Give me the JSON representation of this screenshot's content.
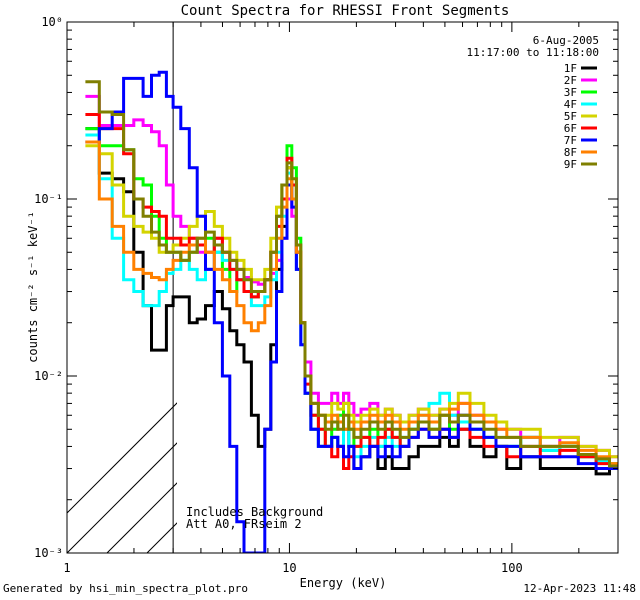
{
  "chart_data": {
    "type": "line",
    "title": "Count Spectra for RHESSI Front Segments",
    "xlabel": "Energy (keV)",
    "ylabel": "counts cm⁻² s⁻¹ keV⁻¹",
    "xscale": "log",
    "yscale": "log",
    "xlim": [
      1.0,
      300
    ],
    "ylim": [
      0.001,
      1.0
    ],
    "x_major_ticks": [
      1,
      10,
      100
    ],
    "x_tick_labels": [
      "1",
      "10",
      "100"
    ],
    "y_major_ticks": [
      0.001,
      0.01,
      0.1,
      1.0
    ],
    "y_tick_labels": [
      "10⁻³",
      "10⁻²",
      "10⁻¹",
      "10⁰"
    ],
    "date": "6-Aug-2005",
    "time_range": "11:17:00 to 11:18:00",
    "annotation_lines": [
      "Includes Background",
      "Att A0, FRseim 2"
    ],
    "excluded_region_xmax": 3.0,
    "legend_position": "top-right",
    "series": [
      {
        "name": "1F",
        "color": "#000000",
        "x": [
          1.3,
          1.5,
          1.7,
          1.9,
          2.1,
          2.3,
          2.5,
          2.7,
          2.9,
          3.1,
          3.4,
          3.7,
          4.0,
          4.4,
          4.8,
          5.2,
          5.6,
          6.0,
          6.5,
          7.0,
          7.5,
          8.0,
          8.5,
          9.0,
          9.5,
          10.0,
          10.5,
          11.0,
          11.5,
          12,
          13,
          14,
          15,
          16,
          17,
          18,
          19,
          20,
          22,
          24,
          26,
          28,
          30,
          33,
          36,
          40,
          45,
          50,
          55,
          60,
          70,
          80,
          90,
          100,
          120,
          150,
          180,
          220,
          260,
          290
        ],
        "values": [
          0.25,
          0.14,
          0.13,
          0.11,
          0.05,
          0.025,
          0.014,
          0.014,
          0.025,
          0.028,
          0.028,
          0.02,
          0.021,
          0.025,
          0.03,
          0.024,
          0.018,
          0.015,
          0.012,
          0.006,
          0.004,
          0.005,
          0.015,
          0.04,
          0.07,
          0.15,
          0.1,
          0.05,
          0.02,
          0.008,
          0.005,
          0.004,
          0.004,
          0.0045,
          0.004,
          0.005,
          0.004,
          0.003,
          0.0035,
          0.004,
          0.003,
          0.0035,
          0.003,
          0.003,
          0.0035,
          0.004,
          0.004,
          0.0045,
          0.004,
          0.005,
          0.004,
          0.0035,
          0.004,
          0.003,
          0.0035,
          0.003,
          0.003,
          0.003,
          0.0028,
          0.003
        ]
      },
      {
        "name": "2F",
        "color": "#ff00ff",
        "x": [
          1.3,
          1.5,
          1.7,
          1.9,
          2.1,
          2.3,
          2.5,
          2.7,
          2.9,
          3.1,
          3.4,
          3.7,
          4.0,
          4.4,
          4.8,
          5.2,
          5.6,
          6.0,
          6.5,
          7.0,
          7.5,
          8.0,
          8.5,
          9.0,
          9.5,
          10.0,
          10.5,
          11.0,
          11.5,
          12,
          13,
          14,
          15,
          16,
          17,
          18,
          19,
          20,
          22,
          24,
          26,
          28,
          30,
          33,
          36,
          40,
          45,
          50,
          55,
          60,
          70,
          80,
          90,
          100,
          120,
          150,
          180,
          220,
          260,
          290
        ],
        "values": [
          0.38,
          0.26,
          0.26,
          0.26,
          0.28,
          0.26,
          0.24,
          0.2,
          0.12,
          0.08,
          0.07,
          0.06,
          0.05,
          0.04,
          0.06,
          0.05,
          0.045,
          0.04,
          0.036,
          0.034,
          0.033,
          0.035,
          0.038,
          0.045,
          0.06,
          0.1,
          0.08,
          0.04,
          0.02,
          0.012,
          0.008,
          0.007,
          0.007,
          0.008,
          0.007,
          0.008,
          0.007,
          0.006,
          0.0065,
          0.007,
          0.006,
          0.0065,
          0.006,
          0.0055,
          0.006,
          0.0065,
          0.006,
          0.0065,
          0.006,
          0.007,
          0.006,
          0.0055,
          0.005,
          0.005,
          0.0045,
          0.004,
          0.0045,
          0.004,
          0.0038,
          0.0035
        ]
      },
      {
        "name": "3F",
        "color": "#00ff00",
        "x": [
          1.3,
          1.5,
          1.7,
          1.9,
          2.1,
          2.3,
          2.5,
          2.7,
          2.9,
          3.1,
          3.4,
          3.7,
          4.0,
          4.4,
          4.8,
          5.2,
          5.6,
          6.0,
          6.5,
          7.0,
          7.5,
          8.0,
          8.5,
          9.0,
          9.5,
          10.0,
          10.5,
          11.0,
          11.5,
          12,
          13,
          14,
          15,
          16,
          17,
          18,
          19,
          20,
          22,
          24,
          26,
          28,
          30,
          33,
          36,
          40,
          45,
          50,
          55,
          60,
          70,
          80,
          90,
          100,
          120,
          150,
          180,
          220,
          260,
          290
        ],
        "values": [
          0.25,
          0.2,
          0.2,
          0.19,
          0.13,
          0.12,
          0.08,
          0.06,
          0.05,
          0.05,
          0.045,
          0.05,
          0.055,
          0.06,
          0.05,
          0.04,
          0.03,
          0.035,
          0.03,
          0.028,
          0.03,
          0.035,
          0.05,
          0.08,
          0.12,
          0.2,
          0.15,
          0.06,
          0.02,
          0.008,
          0.006,
          0.005,
          0.004,
          0.005,
          0.006,
          0.007,
          0.005,
          0.004,
          0.0045,
          0.005,
          0.004,
          0.005,
          0.0045,
          0.004,
          0.005,
          0.0055,
          0.005,
          0.006,
          0.005,
          0.0055,
          0.005,
          0.0045,
          0.004,
          0.004,
          0.0045,
          0.0038,
          0.004,
          0.0035,
          0.0033,
          0.0032
        ]
      },
      {
        "name": "4F",
        "color": "#00ffff",
        "x": [
          1.3,
          1.5,
          1.7,
          1.9,
          2.1,
          2.3,
          2.5,
          2.7,
          2.9,
          3.1,
          3.4,
          3.7,
          4.0,
          4.4,
          4.8,
          5.2,
          5.6,
          6.0,
          6.5,
          7.0,
          7.5,
          8.0,
          8.5,
          9.0,
          9.5,
          10.0,
          10.5,
          11.0,
          11.5,
          12,
          13,
          14,
          15,
          16,
          17,
          18,
          19,
          20,
          22,
          24,
          26,
          28,
          30,
          33,
          36,
          40,
          45,
          50,
          55,
          60,
          70,
          80,
          90,
          100,
          120,
          150,
          180,
          220,
          260,
          290
        ],
        "values": [
          0.23,
          0.13,
          0.06,
          0.035,
          0.03,
          0.025,
          0.025,
          0.03,
          0.038,
          0.04,
          0.045,
          0.04,
          0.035,
          0.04,
          0.05,
          0.045,
          0.04,
          0.035,
          0.03,
          0.025,
          0.025,
          0.028,
          0.035,
          0.05,
          0.08,
          0.14,
          0.1,
          0.04,
          0.015,
          0.008,
          0.005,
          0.004,
          0.004,
          0.0045,
          0.004,
          0.005,
          0.004,
          0.0035,
          0.004,
          0.0045,
          0.004,
          0.0045,
          0.004,
          0.0045,
          0.005,
          0.006,
          0.007,
          0.008,
          0.006,
          0.0055,
          0.005,
          0.0045,
          0.004,
          0.004,
          0.0045,
          0.0038,
          0.004,
          0.0035,
          0.0033,
          0.003
        ]
      },
      {
        "name": "5F",
        "color": "#d4d400",
        "x": [
          1.3,
          1.5,
          1.7,
          1.9,
          2.1,
          2.3,
          2.5,
          2.7,
          2.9,
          3.1,
          3.4,
          3.7,
          4.0,
          4.4,
          4.8,
          5.2,
          5.6,
          6.0,
          6.5,
          7.0,
          7.5,
          8.0,
          8.5,
          9.0,
          9.5,
          10.0,
          10.5,
          11.0,
          11.5,
          12,
          13,
          14,
          15,
          16,
          17,
          18,
          19,
          20,
          22,
          24,
          26,
          28,
          30,
          33,
          36,
          40,
          45,
          50,
          55,
          60,
          70,
          80,
          90,
          100,
          120,
          150,
          180,
          220,
          260,
          290
        ],
        "values": [
          0.2,
          0.18,
          0.12,
          0.08,
          0.07,
          0.065,
          0.06,
          0.05,
          0.05,
          0.055,
          0.06,
          0.07,
          0.08,
          0.085,
          0.07,
          0.06,
          0.05,
          0.045,
          0.04,
          0.035,
          0.035,
          0.04,
          0.06,
          0.09,
          0.12,
          0.15,
          0.12,
          0.05,
          0.02,
          0.01,
          0.007,
          0.006,
          0.006,
          0.007,
          0.0065,
          0.007,
          0.006,
          0.0055,
          0.006,
          0.0065,
          0.006,
          0.0065,
          0.006,
          0.0055,
          0.006,
          0.0065,
          0.006,
          0.0065,
          0.007,
          0.008,
          0.007,
          0.006,
          0.0055,
          0.005,
          0.005,
          0.0045,
          0.0045,
          0.004,
          0.0038,
          0.0035
        ]
      },
      {
        "name": "6F",
        "color": "#ff0000",
        "x": [
          1.3,
          1.5,
          1.7,
          1.9,
          2.1,
          2.3,
          2.5,
          2.7,
          2.9,
          3.1,
          3.4,
          3.7,
          4.0,
          4.4,
          4.8,
          5.2,
          5.6,
          6.0,
          6.5,
          7.0,
          7.5,
          8.0,
          8.5,
          9.0,
          9.5,
          10.0,
          10.5,
          11.0,
          11.5,
          12,
          13,
          14,
          15,
          16,
          17,
          18,
          19,
          20,
          22,
          24,
          26,
          28,
          30,
          33,
          36,
          40,
          45,
          50,
          55,
          60,
          70,
          80,
          90,
          100,
          120,
          150,
          180,
          220,
          260,
          290
        ],
        "values": [
          0.3,
          0.25,
          0.25,
          0.18,
          0.1,
          0.09,
          0.085,
          0.08,
          0.06,
          0.06,
          0.055,
          0.06,
          0.055,
          0.05,
          0.06,
          0.05,
          0.04,
          0.035,
          0.03,
          0.028,
          0.03,
          0.035,
          0.05,
          0.07,
          0.1,
          0.17,
          0.12,
          0.05,
          0.02,
          0.009,
          0.006,
          0.005,
          0.004,
          0.0035,
          0.004,
          0.003,
          0.0035,
          0.004,
          0.0045,
          0.004,
          0.0045,
          0.005,
          0.0045,
          0.004,
          0.0045,
          0.005,
          0.0045,
          0.005,
          0.0045,
          0.005,
          0.0045,
          0.004,
          0.004,
          0.0035,
          0.004,
          0.0035,
          0.0038,
          0.0035,
          0.0032,
          0.003
        ]
      },
      {
        "name": "7F",
        "color": "#0000ff",
        "x": [
          1.3,
          1.5,
          1.7,
          1.9,
          2.1,
          2.3,
          2.5,
          2.7,
          2.9,
          3.1,
          3.4,
          3.7,
          4.0,
          4.4,
          4.8,
          5.2,
          5.6,
          6.0,
          6.5,
          7.0,
          7.5,
          8.0,
          8.5,
          9.0,
          9.5,
          10.0,
          10.5,
          11.0,
          11.5,
          12,
          13,
          14,
          15,
          16,
          17,
          18,
          19,
          20,
          22,
          24,
          26,
          28,
          30,
          33,
          36,
          40,
          45,
          50,
          55,
          60,
          70,
          80,
          90,
          100,
          120,
          150,
          180,
          220,
          260,
          290
        ],
        "values": [
          0.21,
          0.25,
          0.31,
          0.48,
          0.48,
          0.38,
          0.5,
          0.52,
          0.38,
          0.33,
          0.25,
          0.15,
          0.08,
          0.04,
          0.02,
          0.01,
          0.004,
          0.0015,
          0.001,
          0.001,
          0.001,
          0.005,
          0.012,
          0.03,
          0.06,
          0.12,
          0.09,
          0.04,
          0.015,
          0.008,
          0.005,
          0.004,
          0.004,
          0.0045,
          0.004,
          0.0035,
          0.004,
          0.003,
          0.0035,
          0.004,
          0.0035,
          0.004,
          0.0035,
          0.004,
          0.0045,
          0.005,
          0.0045,
          0.005,
          0.0045,
          0.006,
          0.005,
          0.0045,
          0.004,
          0.004,
          0.0035,
          0.0035,
          0.0035,
          0.0032,
          0.003,
          0.003
        ]
      },
      {
        "name": "8F",
        "color": "#ff8000",
        "x": [
          1.3,
          1.5,
          1.7,
          1.9,
          2.1,
          2.3,
          2.5,
          2.7,
          2.9,
          3.1,
          3.4,
          3.7,
          4.0,
          4.4,
          4.8,
          5.2,
          5.6,
          6.0,
          6.5,
          7.0,
          7.5,
          8.0,
          8.5,
          9.0,
          9.5,
          10.0,
          10.5,
          11.0,
          11.5,
          12,
          13,
          14,
          15,
          16,
          17,
          18,
          19,
          20,
          22,
          24,
          26,
          28,
          30,
          33,
          36,
          40,
          45,
          50,
          55,
          60,
          70,
          80,
          90,
          100,
          120,
          150,
          180,
          220,
          260,
          290
        ],
        "values": [
          0.21,
          0.1,
          0.07,
          0.05,
          0.04,
          0.038,
          0.036,
          0.035,
          0.04,
          0.045,
          0.05,
          0.055,
          0.06,
          0.05,
          0.04,
          0.035,
          0.03,
          0.025,
          0.02,
          0.018,
          0.02,
          0.025,
          0.04,
          0.06,
          0.09,
          0.13,
          0.1,
          0.05,
          0.02,
          0.01,
          0.007,
          0.006,
          0.0055,
          0.006,
          0.0055,
          0.005,
          0.0055,
          0.005,
          0.0055,
          0.006,
          0.0055,
          0.006,
          0.0055,
          0.005,
          0.0055,
          0.006,
          0.0055,
          0.006,
          0.0065,
          0.007,
          0.006,
          0.0055,
          0.005,
          0.0045,
          0.0045,
          0.004,
          0.0042,
          0.0038,
          0.0035,
          0.0032
        ]
      },
      {
        "name": "9F",
        "color": "#7f7f00",
        "x": [
          1.3,
          1.5,
          1.7,
          1.9,
          2.1,
          2.3,
          2.5,
          2.7,
          2.9,
          3.1,
          3.4,
          3.7,
          4.0,
          4.4,
          4.8,
          5.2,
          5.6,
          6.0,
          6.5,
          7.0,
          7.5,
          8.0,
          8.5,
          9.0,
          9.5,
          10.0,
          10.5,
          11.0,
          11.5,
          12,
          13,
          14,
          15,
          16,
          17,
          18,
          19,
          20,
          22,
          24,
          26,
          28,
          30,
          33,
          36,
          40,
          45,
          50,
          55,
          60,
          70,
          80,
          90,
          100,
          120,
          150,
          180,
          220,
          260,
          290
        ],
        "values": [
          0.46,
          0.31,
          0.3,
          0.19,
          0.1,
          0.08,
          0.065,
          0.055,
          0.05,
          0.05,
          0.045,
          0.05,
          0.06,
          0.065,
          0.055,
          0.05,
          0.045,
          0.04,
          0.035,
          0.03,
          0.03,
          0.035,
          0.05,
          0.08,
          0.12,
          0.16,
          0.13,
          0.055,
          0.02,
          0.01,
          0.007,
          0.006,
          0.005,
          0.0055,
          0.005,
          0.006,
          0.005,
          0.0045,
          0.005,
          0.0055,
          0.005,
          0.0055,
          0.005,
          0.0045,
          0.005,
          0.0055,
          0.005,
          0.006,
          0.0055,
          0.006,
          0.0055,
          0.005,
          0.0045,
          0.0045,
          0.004,
          0.004,
          0.004,
          0.0036,
          0.0034,
          0.0031
        ]
      }
    ]
  },
  "footer": {
    "generated_by": "Generated by hsi_min_spectra_plot.pro",
    "timestamp": "12-Apr-2023 11:48"
  }
}
